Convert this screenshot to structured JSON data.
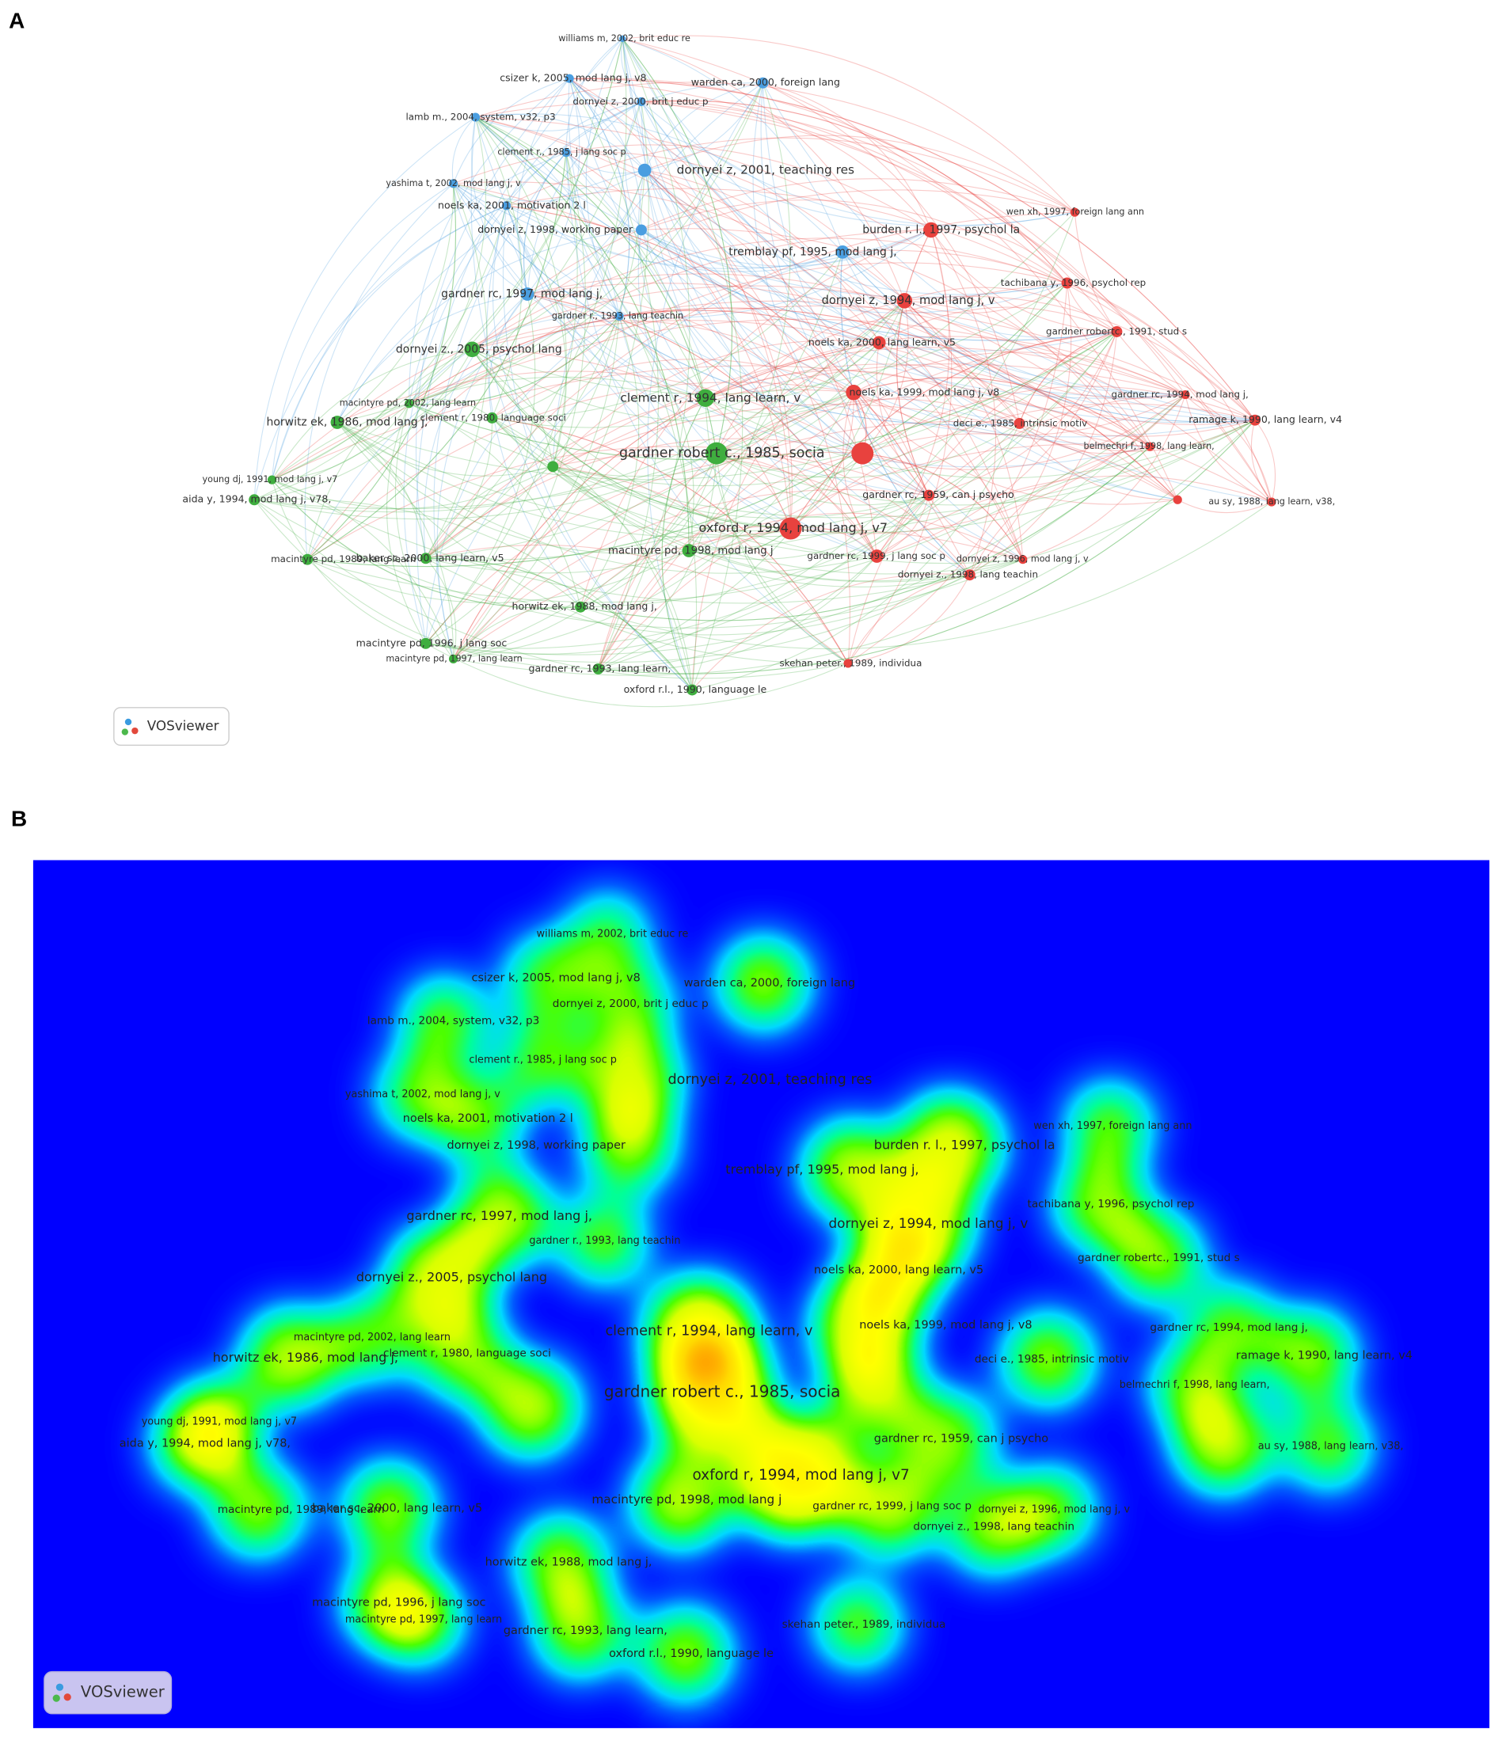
{
  "panels": [
    {
      "label": "A",
      "logo": "VOSviewer"
    },
    {
      "label": "B",
      "logo": "VOSviewer"
    }
  ],
  "nodes": [
    {
      "label": "williams m, 2002, brit educ re"
    },
    {
      "label": "csizer k, 2005, mod lang j, v8"
    },
    {
      "label": "warden ca, 2000, foreign lang"
    },
    {
      "label": "dornyei z, 2000, brit j educ p"
    },
    {
      "label": "lamb m., 2004, system, v32, p3"
    },
    {
      "label": "clement r., 1985, j lang soc p"
    },
    {
      "label": "dornyei z, 2001, teaching res"
    },
    {
      "label": "yashima t, 2002, mod lang j, v"
    },
    {
      "label": "noels ka, 2001, motivation 2 l"
    },
    {
      "label": "dornyei z, 1998, working paper"
    },
    {
      "label": "tremblay pf, 1995, mod lang j,"
    },
    {
      "label": "gardner rc, 1997, mod lang j,"
    },
    {
      "label": "gardner r., 1993, lang teachin"
    },
    {
      "label": "burden r. l., 1997, psychol la"
    },
    {
      "label": "wen xh, 1997, foreign lang ann"
    },
    {
      "label": "dornyei z, 1994, mod lang j, v"
    },
    {
      "label": "tachibana y, 1996, psychol rep"
    },
    {
      "label": "gardner robertc., 1991, stud s"
    },
    {
      "label": "noels ka, 2000, lang learn, v5"
    },
    {
      "label": "noels ka, 1999, mod lang j, v8"
    },
    {
      "label": "gardner rc, 1994, mod lang j,"
    },
    {
      "label": "deci e., 1985, intrinsic motiv"
    },
    {
      "label": "ramage k, 1990, lang learn, v4"
    },
    {
      "label": "belmechri f, 1998, lang learn,"
    },
    {
      "label": "gardner rc, 1959, can j psycho"
    },
    {
      "label": "au sy, 1988, lang learn, v38,"
    },
    {
      "label": "oxford r, 1994, mod lang j, v7"
    },
    {
      "label": "gardner rc, 1999, j lang soc p"
    },
    {
      "label": "dornyei z, 1996, mod lang j, v"
    },
    {
      "label": "dornyei z., 1998, lang teachin"
    },
    {
      "label": "skehan peter., 1989, individua"
    },
    {
      "label": "dornyei z., 2005, psychol lang"
    },
    {
      "label": "clement r, 1994, lang learn, v"
    },
    {
      "label": "macintyre pd, 2002, lang learn"
    },
    {
      "label": "horwitz ek, 1986, mod lang j,"
    },
    {
      "label": "clement r, 1980, language soci"
    },
    {
      "label": "gardner robert c., 1985, socia"
    },
    {
      "label": "young dj, 1991, mod lang j, v7"
    },
    {
      "label": "aida y, 1994, mod lang j, v78,"
    },
    {
      "label": "baker sc, 2000, lang learn, v5"
    },
    {
      "label": "macintyre pd, 1998, mod lang j"
    },
    {
      "label": "macintyre pd, 1989, lang learn"
    },
    {
      "label": "horwitz ek, 1988, mod lang j,"
    },
    {
      "label": "macintyre pd, 1996, j lang soc"
    },
    {
      "label": "macintyre pd, 1997, lang learn"
    },
    {
      "label": "gardner rc, 1993, lang learn,"
    },
    {
      "label": "oxford r.l., 1990, language le"
    }
  ]
}
